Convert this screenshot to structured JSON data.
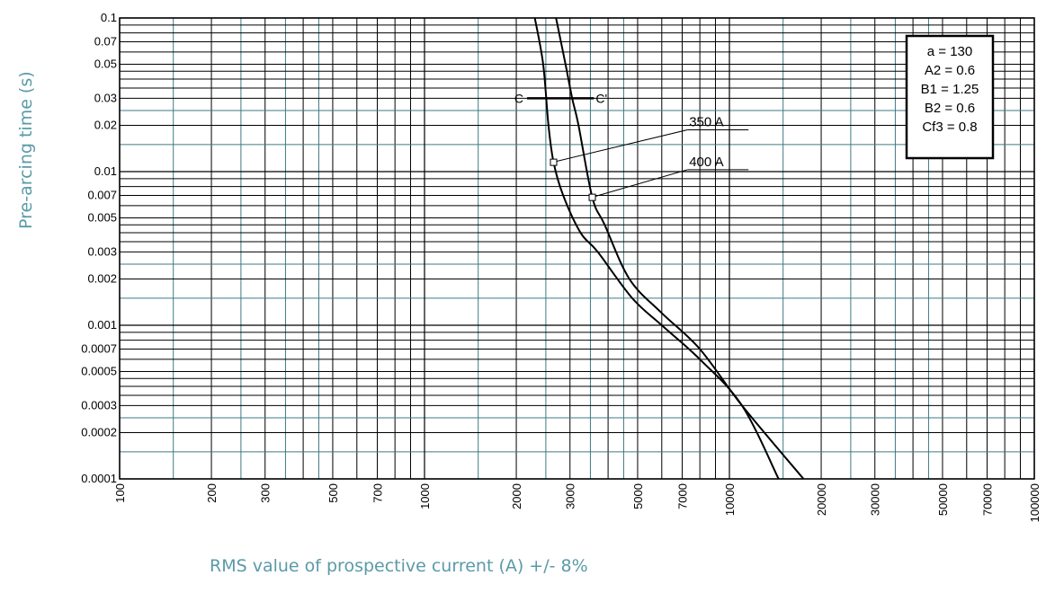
{
  "chart_data": {
    "type": "line",
    "xlabel": "RMS value of prospective current (A) +/- 8%",
    "ylabel": "Pre-arcing time (s)",
    "x_scale": "log",
    "y_scale": "log",
    "xlim": [
      100,
      100000
    ],
    "ylim": [
      0.0001,
      0.1
    ],
    "grid": true,
    "x_tick_labels": [
      "100",
      "200",
      "300",
      "500",
      "700",
      "1000",
      "2000",
      "3000",
      "5000",
      "7000",
      "10000",
      "20000",
      "30000",
      "50000",
      "70000",
      "100000"
    ],
    "x_tick_values": [
      100,
      200,
      300,
      500,
      700,
      1000,
      2000,
      3000,
      5000,
      7000,
      10000,
      20000,
      30000,
      50000,
      70000,
      100000
    ],
    "y_tick_labels": [
      "0.1",
      "0.07",
      "0.05",
      "0.03",
      "0.02",
      "0.01",
      "0.007",
      "0.005",
      "0.003",
      "0.002",
      "0.001",
      "0.0007",
      "0.0005",
      "0.0003",
      "0.0002",
      "0.0001"
    ],
    "y_tick_values": [
      0.1,
      0.07,
      0.05,
      0.03,
      0.02,
      0.01,
      0.007,
      0.005,
      0.003,
      0.002,
      0.001,
      0.0007,
      0.0005,
      0.0003,
      0.0002,
      0.0001
    ],
    "series": [
      {
        "name": "350 A",
        "points": [
          [
            2300,
            0.1
          ],
          [
            2450,
            0.05
          ],
          [
            2550,
            0.02
          ],
          [
            2650,
            0.0115
          ],
          [
            2850,
            0.007
          ],
          [
            3250,
            0.004
          ],
          [
            3700,
            0.003
          ],
          [
            4800,
            0.0015
          ],
          [
            6000,
            0.001
          ],
          [
            8000,
            0.0006
          ],
          [
            11000,
            0.0003
          ],
          [
            14500,
            0.0001
          ]
        ]
      },
      {
        "name": "400 A",
        "points": [
          [
            2700,
            0.1
          ],
          [
            2900,
            0.05
          ],
          [
            3050,
            0.03
          ],
          [
            3200,
            0.02
          ],
          [
            3550,
            0.0068
          ],
          [
            3900,
            0.0045
          ],
          [
            4700,
            0.002
          ],
          [
            6000,
            0.0012
          ],
          [
            8000,
            0.0007
          ],
          [
            11000,
            0.0003
          ],
          [
            17500,
            0.0001
          ]
        ]
      }
    ],
    "markers": [
      {
        "x": 2650,
        "y": 0.0115,
        "label": "350 A"
      },
      {
        "x": 3550,
        "y": 0.0068,
        "label": "400 A"
      }
    ],
    "label_anchor": {
      "350 A": {
        "x": 6800,
        "y": 0.02
      },
      "400 A": {
        "x": 6800,
        "y": 0.011
      }
    },
    "cutoff_line": {
      "x1": 2000,
      "x2": 3900,
      "y": 0.03,
      "label_left": "C",
      "label_right": "C'"
    },
    "legend_box": {
      "position": "top-right",
      "lines": [
        "a = 130",
        "A2 = 0.6",
        "B1 = 1.25",
        "B2 = 0.6",
        "Cf3 = 0.8"
      ]
    },
    "colors": {
      "major_grid": "#000000",
      "minor_grid": "#3e7a85",
      "curve": "#000000",
      "axis_title": "#5a9aa8"
    }
  }
}
